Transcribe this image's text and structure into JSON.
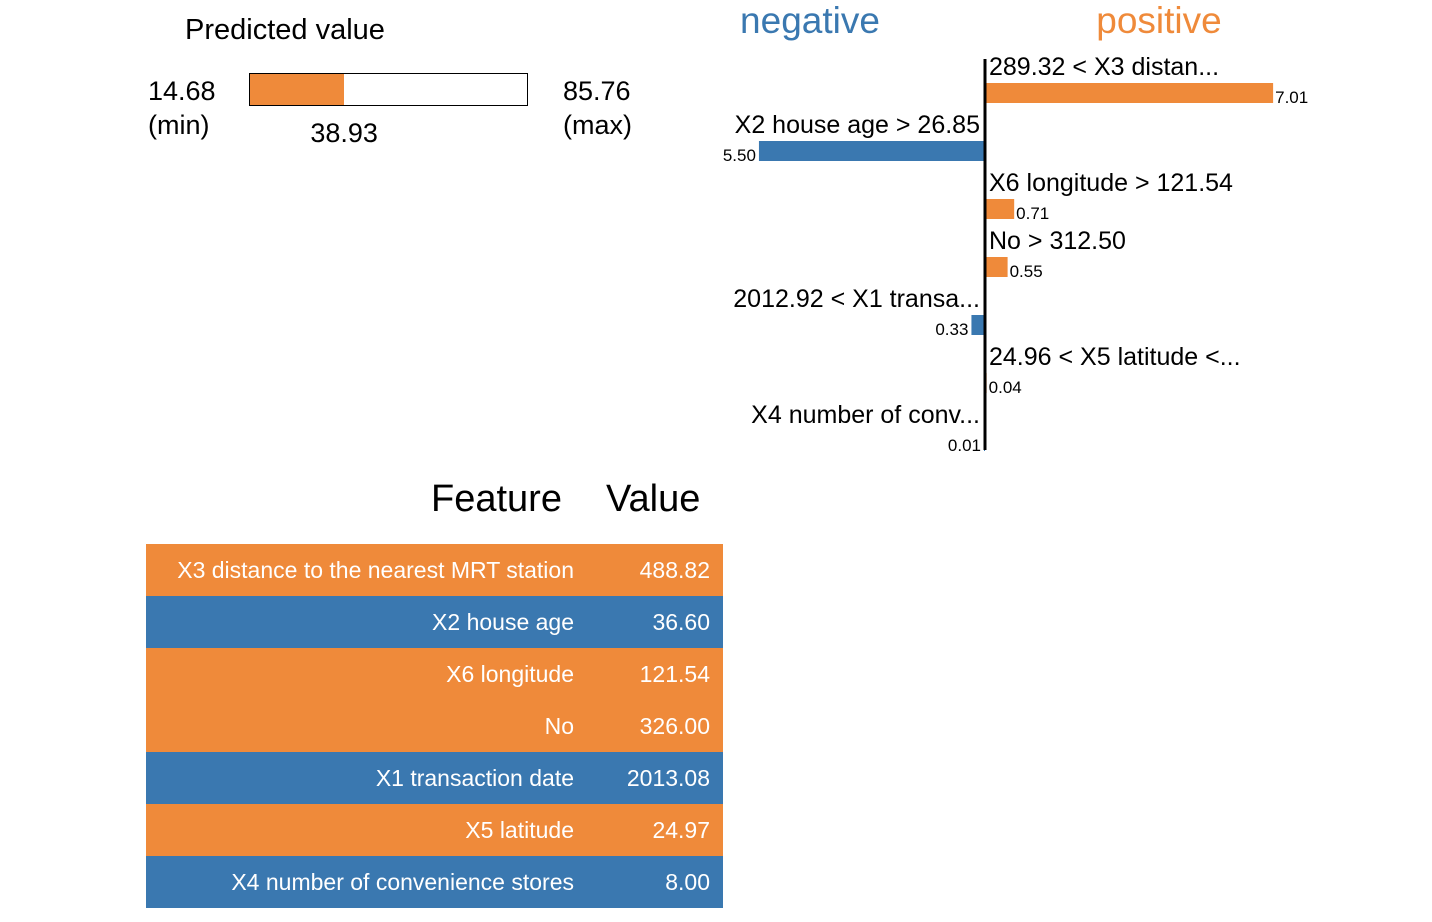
{
  "colors": {
    "negative": "#3a78b0",
    "positive": "#ef8a3a"
  },
  "predicted": {
    "title": "Predicted value",
    "min_label": "14.68",
    "min_suffix": "(min)",
    "max_label": "85.76",
    "max_suffix": "(max)",
    "value_label": "38.93",
    "min": 14.68,
    "max": 85.76,
    "value": 38.93
  },
  "chart_data": {
    "type": "bar",
    "negative_label": "negative",
    "positive_label": "positive",
    "series": [
      {
        "label": "289.32 < X3 distan...",
        "value": 7.01,
        "value_label": "7.01",
        "direction": "positive"
      },
      {
        "label": "X2 house age > 26.85",
        "value": 5.5,
        "value_label": "5.50",
        "direction": "negative"
      },
      {
        "label": "X6 longitude > 121.54",
        "value": 0.71,
        "value_label": "0.71",
        "direction": "positive"
      },
      {
        "label": "No > 312.50",
        "value": 0.55,
        "value_label": "0.55",
        "direction": "positive"
      },
      {
        "label": "2012.92 < X1 transa...",
        "value": 0.33,
        "value_label": "0.33",
        "direction": "negative"
      },
      {
        "label": "24.96 < X5 latitude <...",
        "value": 0.04,
        "value_label": "0.04",
        "direction": "positive"
      },
      {
        "label": "X4 number of conv...",
        "value": 0.01,
        "value_label": "0.01",
        "direction": "negative"
      }
    ]
  },
  "table": {
    "header_feature": "Feature",
    "header_value": "Value",
    "rows": [
      {
        "feature": "X3 distance to the nearest MRT station",
        "value": "488.82",
        "direction": "positive"
      },
      {
        "feature": "X2 house age",
        "value": "36.60",
        "direction": "negative"
      },
      {
        "feature": "X6 longitude",
        "value": "121.54",
        "direction": "positive"
      },
      {
        "feature": "No",
        "value": "326.00",
        "direction": "positive"
      },
      {
        "feature": "X1 transaction date",
        "value": "2013.08",
        "direction": "negative"
      },
      {
        "feature": "X5 latitude",
        "value": "24.97",
        "direction": "positive"
      },
      {
        "feature": "X4 number of convenience stores",
        "value": "8.00",
        "direction": "negative"
      }
    ]
  }
}
